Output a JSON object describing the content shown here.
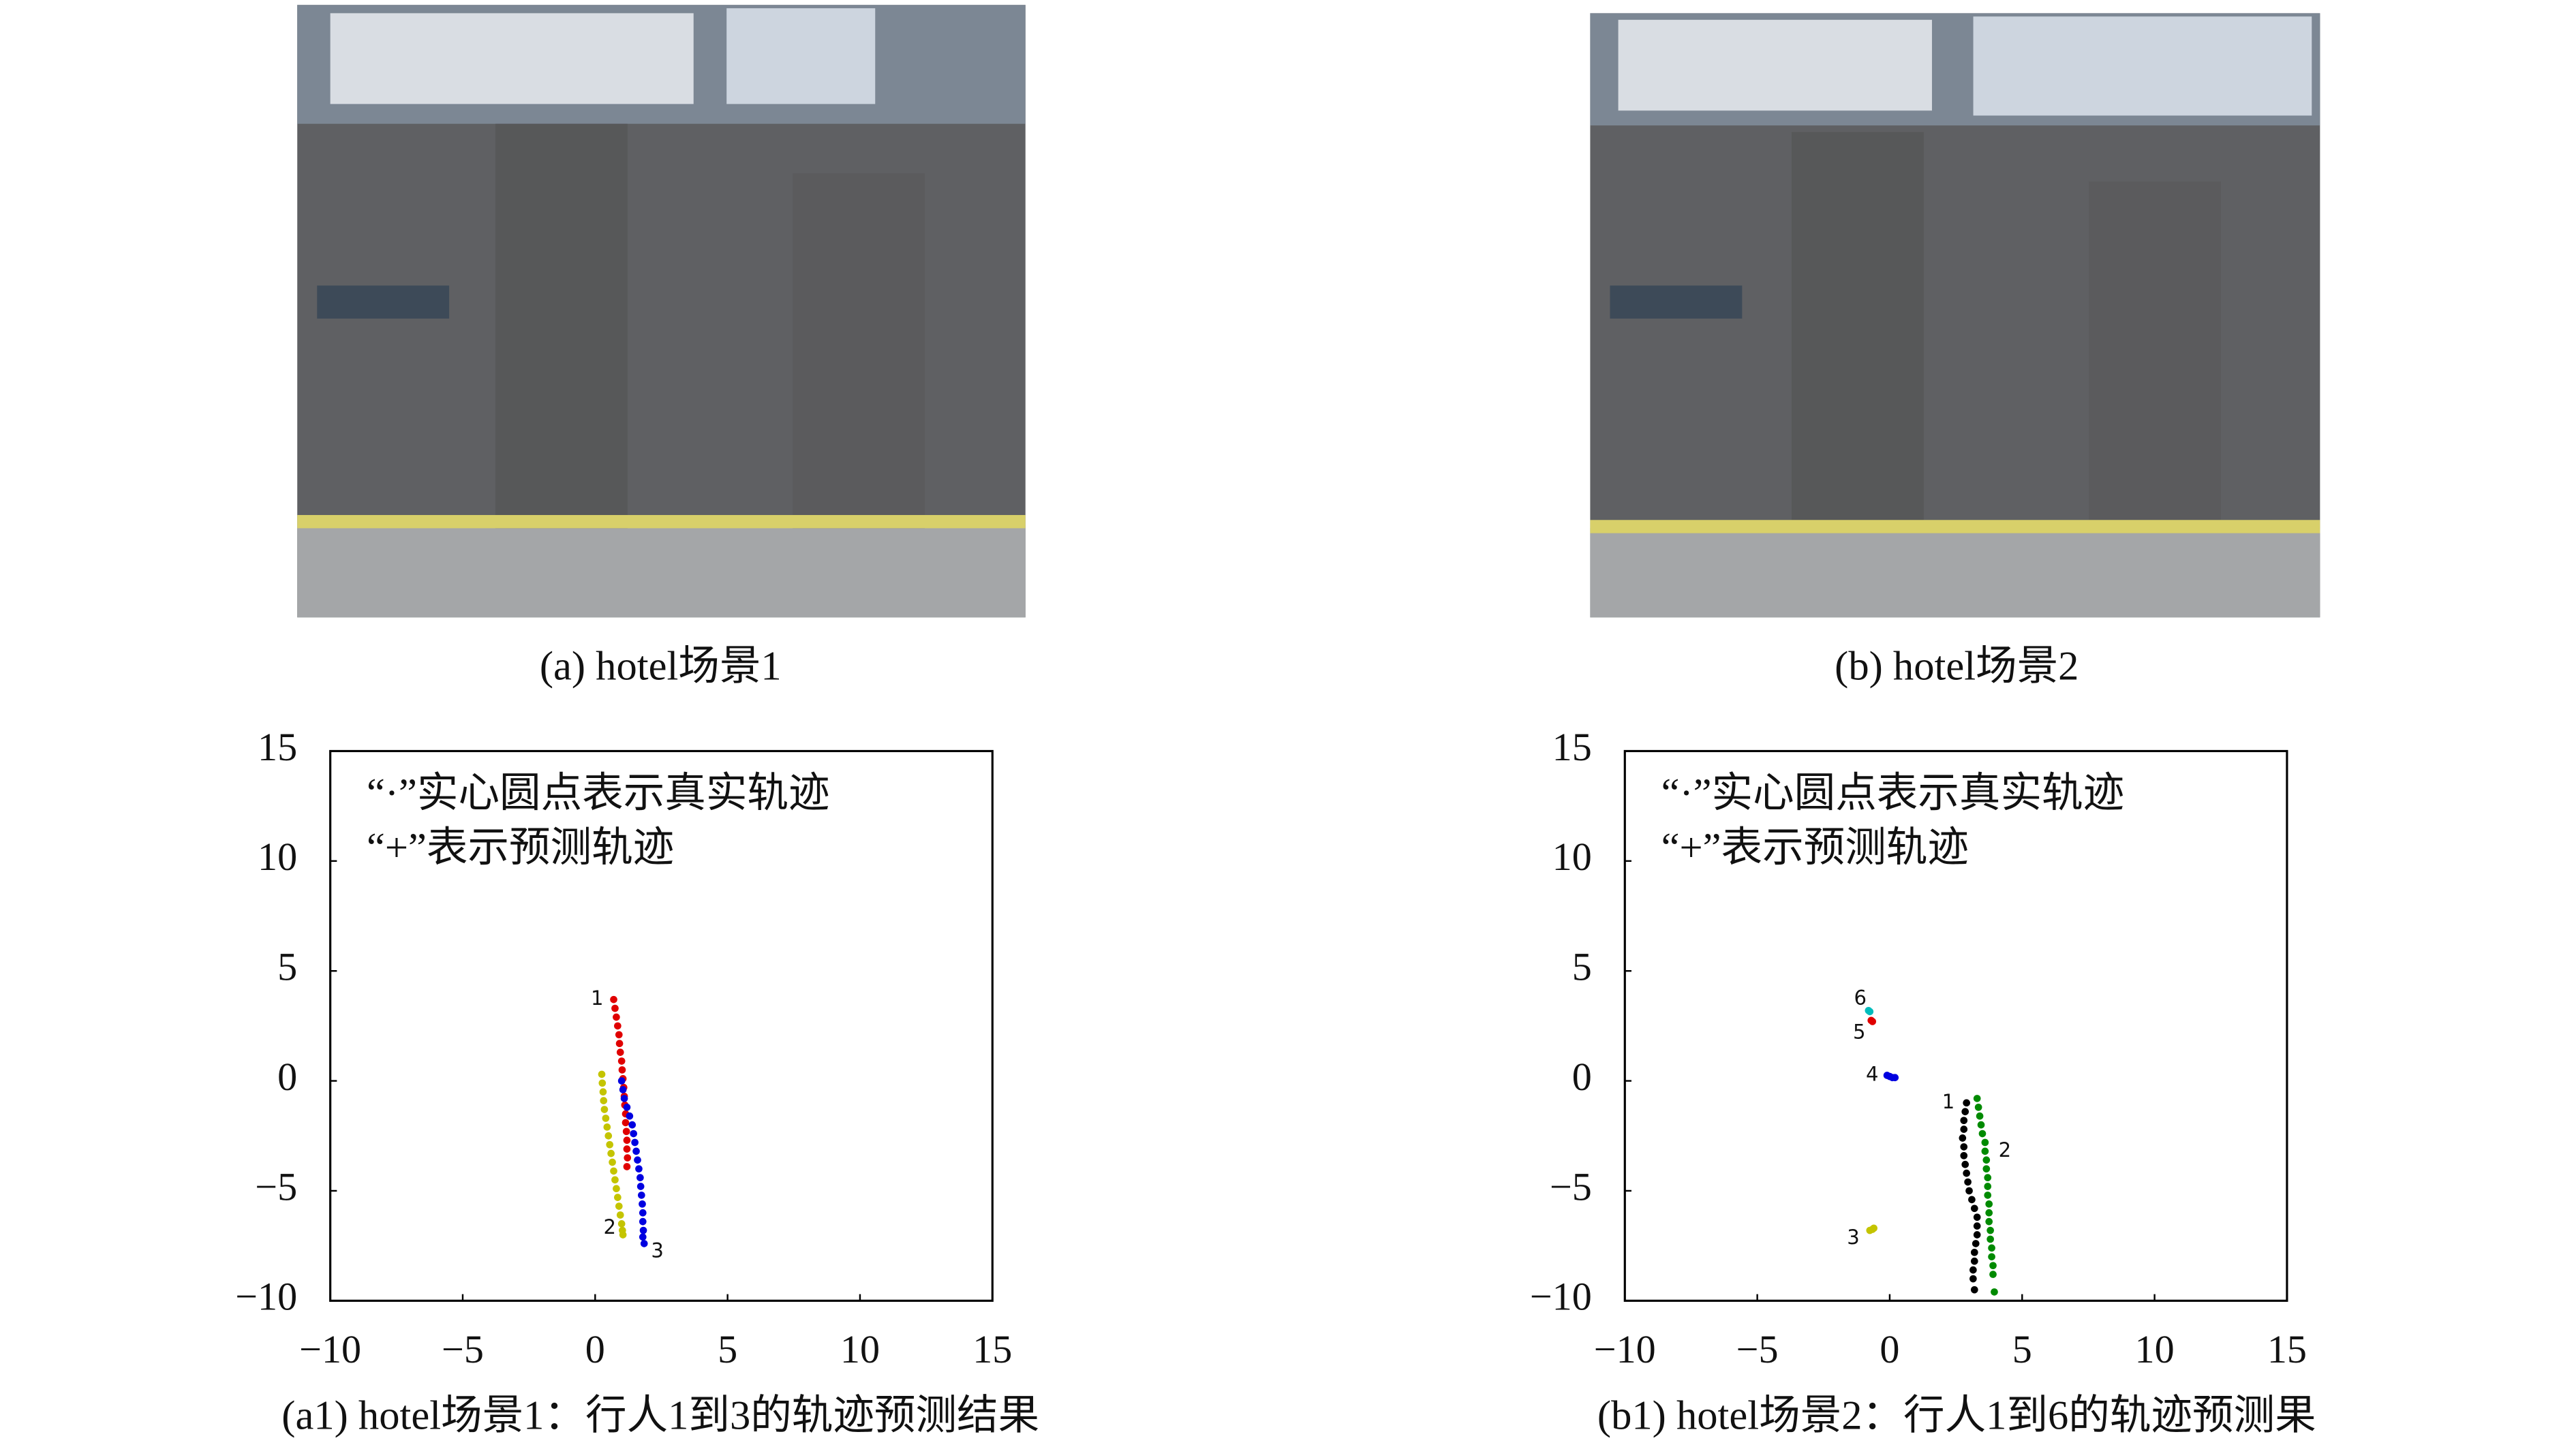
{
  "images": [
    {
      "caption": "(a) hotel场景1"
    },
    {
      "caption": "(b) hotel场景2"
    }
  ],
  "chart_data": [
    {
      "type": "scatter",
      "caption": "(a1) hotel场景1：行人1到3的轨迹预测结果",
      "annotations": [
        "“·”实心圆点表示真实轨迹",
        "“+”表示预测轨迹"
      ],
      "xlim": [
        -10,
        15
      ],
      "ylim": [
        -10,
        15
      ],
      "xticks": [
        {
          "value": -10,
          "label": "−10"
        },
        {
          "value": -5,
          "label": "−5"
        },
        0,
        5,
        10,
        15
      ],
      "yticks": [
        {
          "value": -10,
          "label": "−10"
        },
        {
          "value": -5,
          "label": "−5"
        },
        0,
        5,
        10,
        15
      ],
      "series": [
        {
          "name": "1",
          "color": "#e00000",
          "x": [
            0.7,
            0.75,
            0.8,
            0.85,
            0.9,
            0.92,
            0.95,
            1.0,
            1.02,
            1.05,
            1.08,
            1.1,
            1.12,
            1.15,
            1.15,
            1.18,
            1.2,
            1.2,
            1.22,
            1.2
          ],
          "values": [
            3.7,
            3.3,
            2.9,
            2.5,
            2.1,
            1.7,
            1.3,
            0.9,
            0.5,
            0.1,
            -0.3,
            -0.7,
            -1.1,
            -1.5,
            -1.9,
            -2.3,
            -2.7,
            -3.1,
            -3.5,
            -3.9
          ]
        },
        {
          "name": "2",
          "color": "#c4c400",
          "x": [
            0.25,
            0.27,
            0.3,
            0.32,
            0.35,
            0.4,
            0.45,
            0.5,
            0.55,
            0.6,
            0.65,
            0.7,
            0.75,
            0.8,
            0.85,
            0.9,
            0.95,
            1.0,
            1.03,
            1.05
          ],
          "values": [
            0.3,
            -0.1,
            -0.5,
            -0.9,
            -1.3,
            -1.7,
            -2.1,
            -2.5,
            -2.9,
            -3.3,
            -3.7,
            -4.1,
            -4.5,
            -4.9,
            -5.3,
            -5.7,
            -6.1,
            -6.5,
            -6.8,
            -7.0
          ]
        },
        {
          "name": "3",
          "color": "#0000e0",
          "x": [
            1.0,
            1.05,
            1.1,
            1.2,
            1.3,
            1.4,
            1.45,
            1.5,
            1.55,
            1.6,
            1.65,
            1.7,
            1.72,
            1.75,
            1.78,
            1.8,
            1.8,
            1.82,
            1.8,
            1.85
          ],
          "values": [
            0,
            -0.4,
            -0.8,
            -1.2,
            -1.6,
            -2.0,
            -2.4,
            -2.8,
            -3.2,
            -3.6,
            -4.0,
            -4.4,
            -4.8,
            -5.2,
            -5.6,
            -6.0,
            -6.4,
            -6.8,
            -7.1,
            -7.4
          ]
        }
      ]
    },
    {
      "type": "scatter",
      "caption": "(b1) hotel场景2：行人1到6的轨迹预测果",
      "annotations": [
        "“·”实心圆点表示真实轨迹",
        "“+”表示预测轨迹"
      ],
      "xlim": [
        -10,
        15
      ],
      "ylim": [
        -10,
        15
      ],
      "xticks": [
        {
          "value": -10,
          "label": "−10"
        },
        {
          "value": -5,
          "label": "−5"
        },
        0,
        5,
        10,
        15
      ],
      "yticks": [
        {
          "value": -10,
          "label": "−10"
        },
        {
          "value": -5,
          "label": "−5"
        },
        0,
        5,
        10,
        15
      ],
      "series": [
        {
          "name": "1",
          "color": "#000000",
          "x": [
            2.9,
            2.85,
            2.8,
            2.8,
            2.75,
            2.8,
            2.8,
            2.85,
            2.9,
            2.95,
            3.0,
            3.1,
            3.2,
            3.3,
            3.3,
            3.3,
            3.25,
            3.2,
            3.2,
            3.15,
            3.15,
            3.2
          ],
          "values": [
            -1.0,
            -1.4,
            -1.8,
            -2.2,
            -2.6,
            -3.0,
            -3.4,
            -3.8,
            -4.2,
            -4.6,
            -5.0,
            -5.4,
            -5.8,
            -6.2,
            -6.6,
            -7.0,
            -7.4,
            -7.8,
            -8.2,
            -8.6,
            -9.0,
            -9.5
          ]
        },
        {
          "name": "2",
          "color": "#008a00",
          "x": [
            3.3,
            3.35,
            3.4,
            3.45,
            3.5,
            3.6,
            3.6,
            3.65,
            3.65,
            3.7,
            3.7,
            3.7,
            3.75,
            3.75,
            3.75,
            3.8,
            3.8,
            3.85,
            3.85,
            3.9,
            3.9,
            3.95
          ],
          "values": [
            -0.8,
            -1.2,
            -1.6,
            -2.0,
            -2.4,
            -2.8,
            -3.2,
            -3.6,
            -4.0,
            -4.4,
            -4.8,
            -5.2,
            -5.6,
            -6.0,
            -6.4,
            -6.8,
            -7.2,
            -7.6,
            -8.0,
            -8.4,
            -8.8,
            -9.6
          ]
        },
        {
          "name": "3",
          "color": "#c4c400",
          "x": [
            -0.75,
            -0.65,
            -0.6
          ],
          "values": [
            -6.8,
            -6.75,
            -6.7
          ]
        },
        {
          "name": "4",
          "color": "#0000e0",
          "x": [
            -0.1,
            0.0,
            0.1,
            0.2
          ],
          "values": [
            0.25,
            0.2,
            0.15,
            0.15
          ]
        },
        {
          "name": "5",
          "color": "#e00000",
          "x": [
            -0.7,
            -0.65
          ],
          "values": [
            2.75,
            2.7
          ]
        },
        {
          "name": "6",
          "color": "#00bcbc",
          "x": [
            -0.8,
            -0.75
          ],
          "values": [
            3.2,
            3.15
          ]
        }
      ]
    }
  ]
}
